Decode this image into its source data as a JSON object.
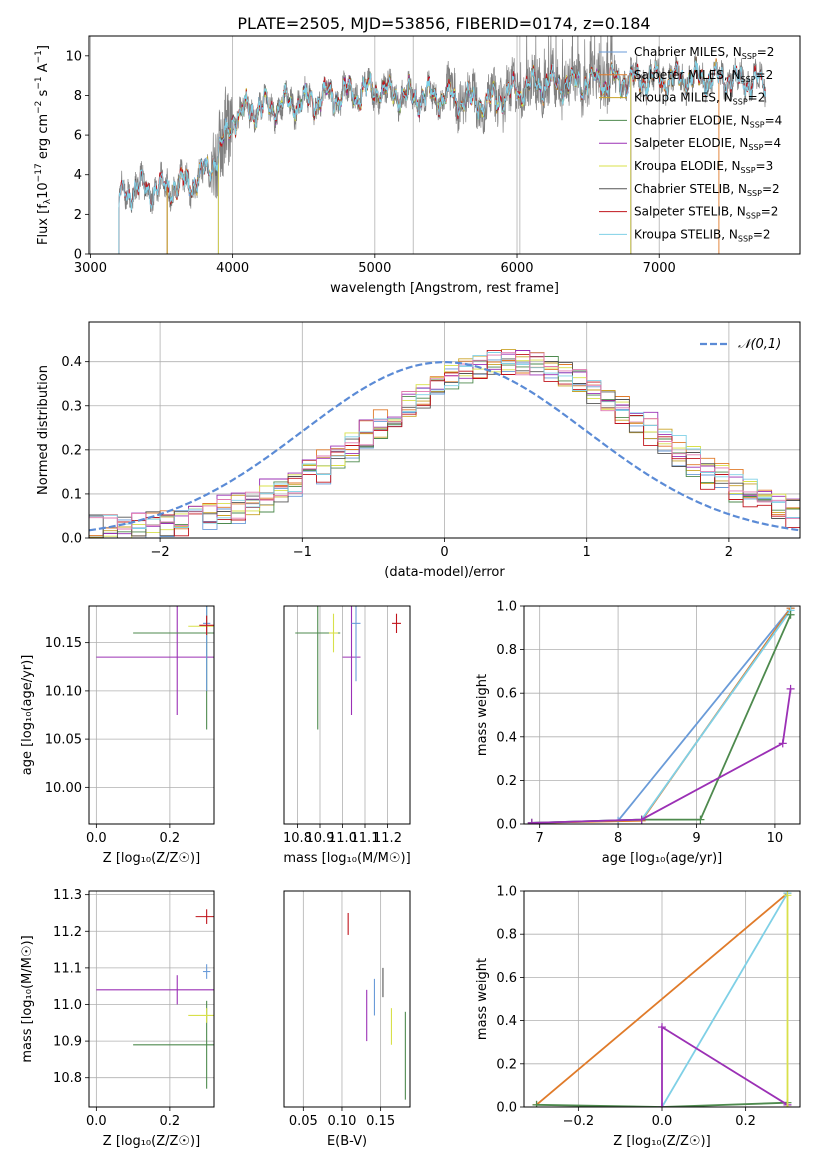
{
  "title": "PLATE=2505, MJD=53856, FIBERID=0174, z=0.184",
  "colors": {
    "Chabrier MILES": "#6a9bd8",
    "Salpeter MILES": "#e07b2a",
    "Kroupa MILES": "#c9a227",
    "Chabrier ELODIE": "#4e8a4e",
    "Salpeter ELODIE": "#9b30b5",
    "Kroupa ELODIE": "#d8e04a",
    "Chabrier STELIB": "#555555",
    "Salpeter STELIB": "#c0141c",
    "Kroupa STELIB": "#7fd0e6",
    "data": "#808080",
    "normal": "#5b8bd6",
    "pink": "#e07ab0"
  },
  "chart_data": [
    {
      "type": "line",
      "name": "spectrum",
      "xlabel": "wavelength [Angstrom, rest frame]",
      "ylabel_parts": {
        "a": "Flux [f",
        "b": "λ",
        "c": "10",
        "d": "−17",
        "e": " erg cm",
        "f": "−2",
        "g": " s",
        "h": "−1",
        "i": " A",
        "j": "−1",
        "k": "]"
      },
      "xlim": [
        2990,
        7990
      ],
      "ylim": [
        0,
        11
      ],
      "xticks": [
        3000,
        4000,
        5000,
        6000,
        7000
      ],
      "yticks": [
        0,
        2,
        4,
        6,
        8,
        10
      ],
      "grid": "vertical",
      "legend_position": "right",
      "legend": [
        {
          "label": "Chabrier MILES, N",
          "n": "2"
        },
        {
          "label": "Salpeter MILES, N",
          "n": "2"
        },
        {
          "label": "Kroupa MILES, N",
          "n": "2"
        },
        {
          "label": "Chabrier ELODIE, N",
          "n": "4"
        },
        {
          "label": "Salpeter ELODIE, N",
          "n": "4"
        },
        {
          "label": "Kroupa ELODIE, N",
          "n": "3"
        },
        {
          "label": "Chabrier STELIB, N",
          "n": "2"
        },
        {
          "label": "Salpeter STELIB, N",
          "n": "2"
        },
        {
          "label": "Kroupa STELIB, N",
          "n": "2"
        }
      ],
      "legend_sub": "SSP",
      "continuum_x": [
        3200,
        3300,
        3500,
        3700,
        3800,
        3900,
        4000,
        4100,
        4300,
        4500,
        4700,
        5000,
        5200,
        5500,
        5800,
        6000,
        6200,
        6500,
        6800,
        7000,
        7300,
        7500,
        7750
      ],
      "continuum_y": [
        2.7,
        3.3,
        3.3,
        3.6,
        4.0,
        5.0,
        6.8,
        7.3,
        7.4,
        7.7,
        8.0,
        8.3,
        8.0,
        7.9,
        7.6,
        8.3,
        8.6,
        8.7,
        8.8,
        8.8,
        8.9,
        8.8,
        8.6
      ]
    },
    {
      "type": "histogram",
      "name": "residuals",
      "xlabel": "(data-model)/error",
      "ylabel": "Normed distribution",
      "xlim": [
        -2.5,
        2.5
      ],
      "ylim": [
        0,
        0.49
      ],
      "xticks": [
        -2,
        -1,
        0,
        1,
        2
      ],
      "yticks": [
        0.0,
        0.1,
        0.2,
        0.3,
        0.4
      ],
      "grid": true,
      "legend": "𝒩(0,1)",
      "legend_position": "top-right",
      "bin_width": 0.1
    },
    {
      "type": "error-bars",
      "name": "age-vs-Z",
      "xlabel": "Z [log₁₀(Z/Z☉)]",
      "ylabel": "age  [log₁₀(age/yr)]",
      "xlim": [
        -0.02,
        0.32
      ],
      "ylim": [
        9.962,
        10.188
      ],
      "xticks": [
        0.0,
        0.2
      ],
      "yticks": [
        10.0,
        10.05,
        10.1,
        10.15
      ],
      "points": [
        {
          "model": "Salpeter ELODIE",
          "x": 0.22,
          "y": 10.135,
          "xerr": 0.22,
          "yerr": 0.06
        },
        {
          "model": "Chabrier ELODIE",
          "x": 0.3,
          "y": 10.16,
          "xerr": 0.2,
          "yerr": 0.1
        },
        {
          "model": "Kroupa ELODIE",
          "x": 0.3,
          "y": 10.167,
          "xerr": 0.05,
          "yerr": 0.01
        },
        {
          "model": "Chabrier MILES",
          "x": 0.3,
          "y": 10.17,
          "xerr": 0.01,
          "yerr": 0.07
        },
        {
          "model": "Salpeter STELIB",
          "x": 0.3,
          "y": 10.168,
          "xerr": 0.02,
          "yerr": 0.01
        }
      ]
    },
    {
      "type": "error-bars",
      "name": "age-vs-mass",
      "xlabel": "mass [log₁₀(M/M☉)]",
      "xlim": [
        10.74,
        11.3
      ],
      "ylim": [
        9.962,
        10.188
      ],
      "xticks": [
        10.8,
        10.9,
        11.0,
        11.1,
        11.2
      ],
      "points": [
        {
          "model": "Chabrier ELODIE",
          "x": 10.89,
          "y": 10.16,
          "xerr": 0.1,
          "yerr": 0.1
        },
        {
          "model": "Salpeter ELODIE",
          "x": 11.04,
          "y": 10.135,
          "xerr": 0.04,
          "yerr": 0.06
        },
        {
          "model": "Kroupa ELODIE",
          "x": 10.96,
          "y": 10.16,
          "xerr": 0.02,
          "yerr": 0.02
        },
        {
          "model": "Chabrier MILES",
          "x": 11.06,
          "y": 10.17,
          "xerr": 0.02,
          "yerr": 0.06
        },
        {
          "model": "Salpeter STELIB",
          "x": 11.24,
          "y": 10.17,
          "xerr": 0.02,
          "yerr": 0.01
        }
      ]
    },
    {
      "type": "line",
      "name": "weight-vs-age",
      "xlabel": "age  [log₁₀(age/yr)]",
      "ylabel": "mass weight",
      "xlim": [
        6.8,
        10.32
      ],
      "ylim": [
        0,
        1
      ],
      "xticks": [
        7,
        8,
        9,
        10
      ],
      "yticks": [
        0.0,
        0.2,
        0.4,
        0.6,
        0.8,
        1.0
      ],
      "series": [
        {
          "model": "Chabrier MILES",
          "x": [
            6.9,
            8.0,
            10.2
          ],
          "y": [
            0.005,
            0.015,
            0.99
          ]
        },
        {
          "model": "Salpeter MILES",
          "x": [
            6.9,
            8.3,
            10.2
          ],
          "y": [
            0.005,
            0.015,
            0.99
          ]
        },
        {
          "model": "Kroupa STELIB",
          "x": [
            6.9,
            8.3,
            10.2
          ],
          "y": [
            0.005,
            0.02,
            0.98
          ]
        },
        {
          "model": "Chabrier ELODIE",
          "x": [
            6.9,
            8.3,
            9.05,
            10.2
          ],
          "y": [
            0.005,
            0.02,
            0.02,
            0.96
          ]
        },
        {
          "model": "Salpeter ELODIE",
          "x": [
            6.9,
            8.3,
            10.1,
            10.2
          ],
          "y": [
            0.005,
            0.02,
            0.37,
            0.62
          ]
        }
      ]
    },
    {
      "type": "error-bars",
      "name": "mass-vs-Z",
      "xlabel": "Z [log₁₀(Z/Z☉)]",
      "ylabel": "mass [log₁₀(M/M☉)]",
      "xlim": [
        -0.02,
        0.32
      ],
      "ylim": [
        10.72,
        11.31
      ],
      "xticks": [
        0.0,
        0.2
      ],
      "yticks": [
        10.8,
        10.9,
        11.0,
        11.1,
        11.2,
        11.3
      ],
      "points": [
        {
          "model": "Salpeter ELODIE",
          "x": 0.22,
          "y": 11.04,
          "xerr": 0.22,
          "yerr": 0.04
        },
        {
          "model": "Chabrier ELODIE",
          "x": 0.3,
          "y": 10.89,
          "xerr": 0.2,
          "yerr": 0.12
        },
        {
          "model": "Kroupa ELODIE",
          "x": 0.3,
          "y": 10.97,
          "xerr": 0.05,
          "yerr": 0.02
        },
        {
          "model": "Salpeter STELIB",
          "x": 0.3,
          "y": 11.24,
          "xerr": 0.03,
          "yerr": 0.02
        },
        {
          "model": "Chabrier MILES",
          "x": 0.3,
          "y": 11.09,
          "xerr": 0.01,
          "yerr": 0.02
        }
      ]
    },
    {
      "type": "error-bars",
      "name": "mass-vs-EBV",
      "xlabel": "E(B-V)",
      "xlim": [
        0.025,
        0.188
      ],
      "ylim": [
        10.72,
        11.31
      ],
      "xticks": [
        0.05,
        0.1,
        0.15
      ],
      "points": [
        {
          "model": "Salpeter STELIB",
          "x": 0.108,
          "y": 11.22,
          "yerr": 0.03
        },
        {
          "model": "Salpeter ELODIE",
          "x": 0.132,
          "y": 10.97,
          "yerr": 0.07
        },
        {
          "model": "Chabrier MILES",
          "x": 0.142,
          "y": 11.02,
          "yerr": 0.05
        },
        {
          "model": "Chabrier STELIB",
          "x": 0.153,
          "y": 11.06,
          "yerr": 0.04
        },
        {
          "model": "Kroupa ELODIE",
          "x": 0.164,
          "y": 10.94,
          "yerr": 0.05
        },
        {
          "model": "Chabrier ELODIE",
          "x": 0.182,
          "y": 10.86,
          "yerr": 0.12
        }
      ]
    },
    {
      "type": "line",
      "name": "weight-vs-Z",
      "xlabel": "Z [log₁₀(Z/Z☉)]",
      "ylabel": "mass weight",
      "xlim": [
        -0.33,
        0.33
      ],
      "ylim": [
        0,
        1
      ],
      "xticks": [
        -0.2,
        0.0,
        0.2
      ],
      "yticks": [
        0.0,
        0.2,
        0.4,
        0.6,
        0.8,
        1.0
      ],
      "series": [
        {
          "model": "Salpeter MILES",
          "x": [
            -0.3,
            0.3
          ],
          "y": [
            0.01,
            0.99
          ]
        },
        {
          "model": "Kroupa STELIB",
          "x": [
            0.0,
            0.3
          ],
          "y": [
            0.0,
            0.99
          ]
        },
        {
          "model": "Chabrier ELODIE",
          "x": [
            -0.3,
            0.0,
            0.3
          ],
          "y": [
            0.01,
            0.0,
            0.02
          ]
        },
        {
          "model": "Salpeter ELODIE",
          "x": [
            0.0,
            0.0,
            0.3
          ],
          "y": [
            0.0,
            0.37,
            0.01
          ]
        },
        {
          "model": "Kroupa ELODIE",
          "x": [
            0.3,
            0.3
          ],
          "y": [
            0.0,
            0.98
          ]
        }
      ]
    }
  ]
}
